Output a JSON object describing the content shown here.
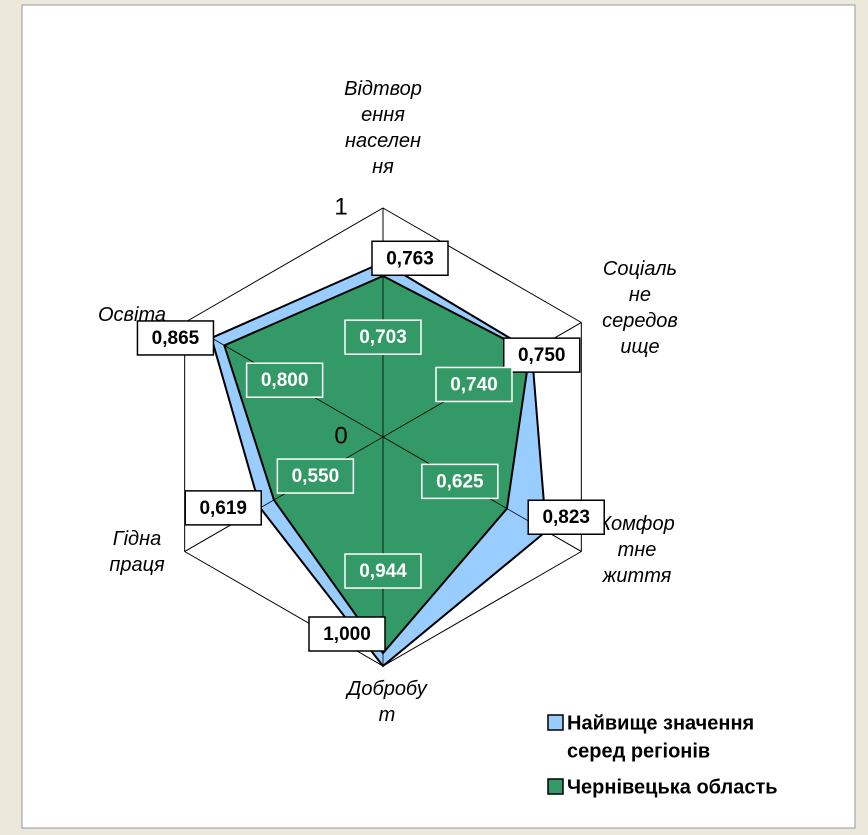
{
  "chart_data": {
    "type": "radar",
    "categories": [
      [
        "Відтвор",
        "ення",
        "населен",
        "ня"
      ],
      [
        "Соціаль",
        "не",
        "середов",
        "ище"
      ],
      [
        "Комфор",
        "тне",
        "життя"
      ],
      [
        "Добробу",
        "т"
      ],
      [
        "Гідна",
        "праця"
      ],
      [
        "Освіта"
      ]
    ],
    "series": [
      {
        "name": [
          "Найвище значення",
          "серед регіонів"
        ],
        "color": "#99ccff",
        "values": [
          0.763,
          0.75,
          0.823,
          1.0,
          0.619,
          0.865
        ],
        "value_labels": [
          "0,763",
          "0,750",
          "0,823",
          "1,000",
          "0,619",
          "0,865"
        ]
      },
      {
        "name": [
          "Чернівецька область"
        ],
        "color": "#339966",
        "values": [
          0.703,
          0.74,
          0.625,
          0.944,
          0.55,
          0.8
        ],
        "value_labels": [
          "0,703",
          "0,740",
          "0,625",
          "0,944",
          "0,550",
          "0,800"
        ]
      }
    ],
    "ylim": [
      0,
      1
    ],
    "yticks": [
      0,
      1
    ],
    "grid": true,
    "legend": "bottom-right"
  }
}
